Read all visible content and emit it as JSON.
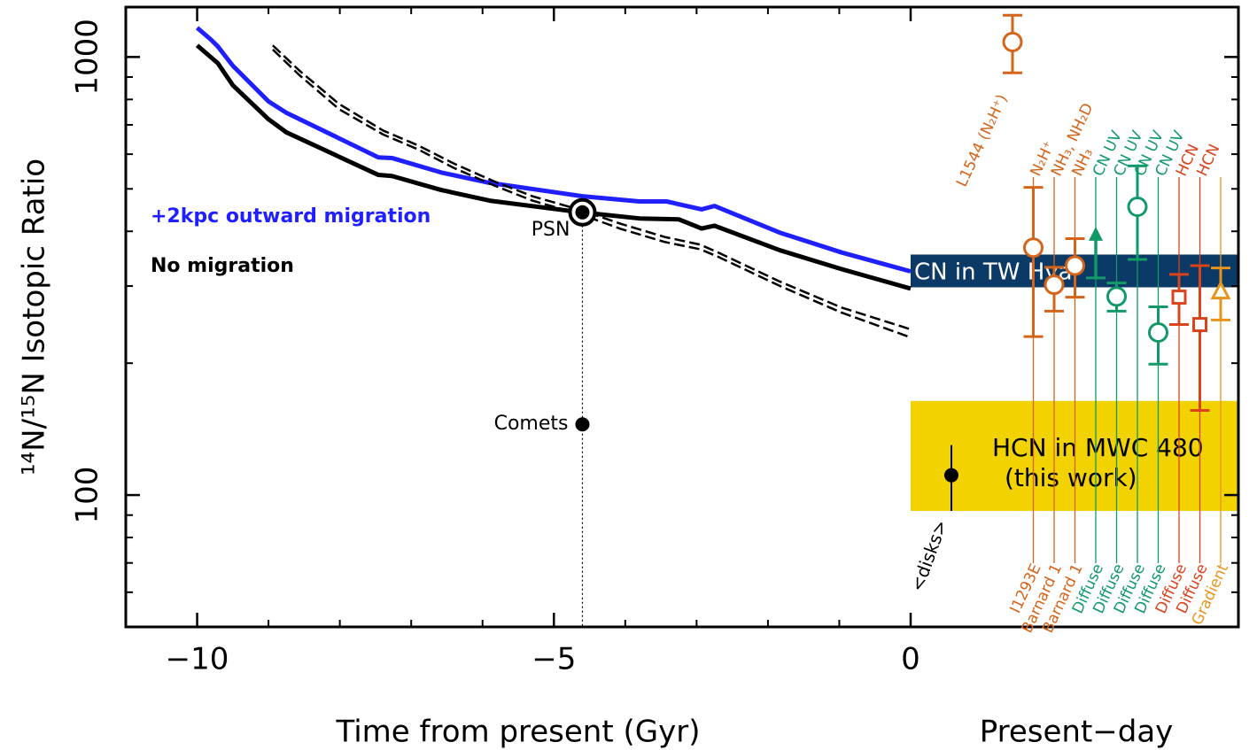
{
  "chart_data": {
    "type": "line",
    "xlabel": "Time from present (Gyr)",
    "ylabel": "¹⁴N/¹⁵N Isotopic Ratio",
    "xlim": [
      -11,
      0
    ],
    "ylim": [
      50,
      1300
    ],
    "log_y": true,
    "xticks": [
      {
        "value": -10,
        "label": "−10"
      },
      {
        "value": -5,
        "label": "−5"
      },
      0
    ],
    "xminorticks": [
      -9,
      -8,
      -7,
      -6,
      -4,
      -3,
      -2,
      -1
    ],
    "yticks": [
      100,
      1000
    ],
    "yminorticks": [
      60,
      70,
      80,
      90,
      200,
      300,
      400,
      500,
      600,
      700,
      800,
      900
    ],
    "series": [
      {
        "name": "+2kpc outward migration",
        "color": "#1f1fff",
        "style": "solid",
        "x": [
          -10,
          -9.81,
          -9.71,
          -9.5,
          -9,
          -8.75,
          -7.46,
          -7.27,
          -6.58,
          -5.9,
          -4.6,
          -3.8,
          -3.42,
          -2.93,
          -2.75,
          -1.83,
          -0.97,
          0
        ],
        "values": [
          1166,
          1097,
          1057,
          955,
          792,
          746,
          590,
          588,
          545,
          516,
          481,
          468,
          468,
          449,
          457,
          397,
          358,
          324
        ]
      },
      {
        "name": "No migration",
        "color": "#000000",
        "style": "solid",
        "x": [
          -10,
          -9.71,
          -9.5,
          -9,
          -8.75,
          -7.46,
          -7.27,
          -6.58,
          -5.9,
          -4.62,
          -3.8,
          -3.25,
          -2.93,
          -2.75,
          -1.83,
          -0.97,
          0
        ],
        "values": [
          1063,
          968,
          862,
          721,
          673,
          538,
          535,
          497,
          470,
          442,
          428,
          426,
          406,
          412,
          362,
          328,
          296
        ]
      },
      {
        "color": "#000000",
        "style": "dashed",
        "x": [
          -8.94,
          -8.57,
          -8.01,
          -7.39,
          -6.9,
          -6.4,
          -5.85,
          -5.3,
          -4.62,
          -4.06,
          -3.44,
          -2.95,
          -2.7,
          -1.83,
          -0.97,
          0
        ],
        "values": [
          1063,
          932,
          781,
          679,
          628,
          571,
          521,
          481,
          447,
          416,
          388,
          373,
          358,
          307,
          268,
          239
        ]
      },
      {
        "color": "#000000",
        "style": "dashed",
        "x": [
          -8.94,
          -8.57,
          -8.01,
          -7.39,
          -6.9,
          -6.4,
          -5.85,
          -5.3,
          -4.62,
          -4.06,
          -3.44,
          -2.95,
          -2.7,
          -1.83,
          -0.97,
          0
        ],
        "values": [
          1040,
          910,
          760,
          665,
          615,
          558,
          510,
          470,
          437,
          405,
          378,
          364,
          350,
          300,
          261,
          229
        ]
      }
    ],
    "annotations": [
      {
        "label": "PSN",
        "x": -4.6,
        "y": 442,
        "marker": "ringed"
      },
      {
        "label": "Comets",
        "x": -4.6,
        "y": 145,
        "marker": "dot"
      }
    ],
    "present_day": {
      "label": "Present−day",
      "bands": [
        {
          "label": "CN in TW Hya",
          "low": 298,
          "high": 354,
          "color": "#0b3a66"
        },
        {
          "label": "HCN in MWC 480",
          "sublabel": "(this work)",
          "low": 92,
          "high": 164,
          "color": "#f2d200"
        }
      ],
      "disks": {
        "label": "<disks>",
        "value": 111,
        "low": 92,
        "high": 130,
        "color": "#000000"
      },
      "points": [
        {
          "label": "L1544 (N₂H⁺)",
          "value": 1082,
          "low": 920,
          "high": 1245,
          "color": "#d4641a",
          "marker": "circle"
        },
        {
          "label": "N₂H⁺",
          "source": "I1293E",
          "value": 367,
          "low": 230,
          "high": 504,
          "color": "#d4641a",
          "marker": "circle"
        },
        {
          "label": "NH₃, NH₂D",
          "source": "Barnard 1",
          "value": 302,
          "low": 263,
          "high": 331,
          "color": "#d4641a",
          "marker": "circle"
        },
        {
          "label": "NH₃",
          "source": "Barnard 1",
          "value": 334,
          "low": 283,
          "high": 385,
          "color": "#d4641a",
          "marker": "circle"
        },
        {
          "label": "CN UV",
          "source": "Diffuse",
          "value": 313,
          "color": "#119a68",
          "marker": "lower-limit"
        },
        {
          "label": "CN UV",
          "source": "Diffuse",
          "value": 284,
          "low": 263,
          "high": 305,
          "color": "#119a68",
          "marker": "circle"
        },
        {
          "label": "CN UV",
          "source": "Diffuse",
          "value": 455,
          "low": 345,
          "high": 564,
          "color": "#119a68",
          "marker": "circle"
        },
        {
          "label": "CN UV",
          "source": "Diffuse",
          "value": 235,
          "low": 199,
          "high": 269,
          "color": "#119a68",
          "marker": "circle"
        },
        {
          "label": "HCN",
          "source": "Diffuse",
          "value": 283,
          "low": 245,
          "high": 319,
          "color": "#d9441c",
          "marker": "square"
        },
        {
          "label": "HCN",
          "source": "Diffuse",
          "value": 245,
          "low": 156,
          "high": 334,
          "color": "#d9441c",
          "marker": "square"
        },
        {
          "source": "Gradient",
          "value": 291,
          "low": 251,
          "high": 330,
          "color": "#e8941c",
          "marker": "triangle"
        }
      ]
    }
  }
}
